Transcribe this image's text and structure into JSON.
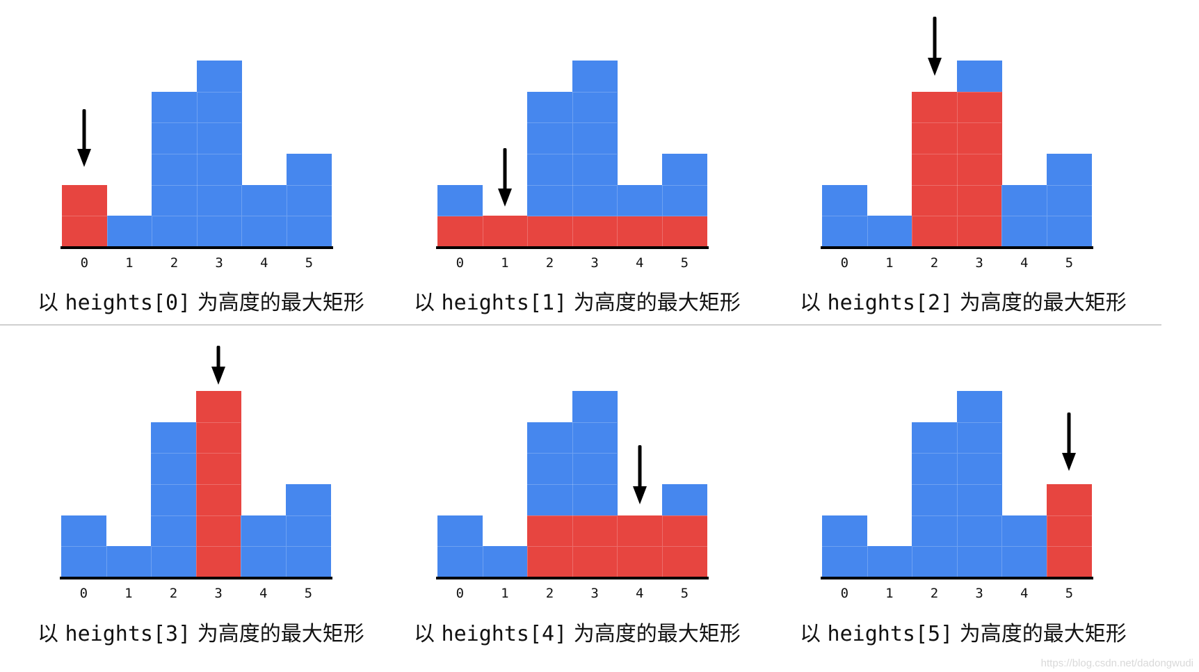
{
  "heights": [
    2,
    1,
    5,
    6,
    2,
    3
  ],
  "x_labels": [
    "0",
    "1",
    "2",
    "3",
    "4",
    "5"
  ],
  "colors": {
    "bar": "#4687ee",
    "highlight": "#e74540",
    "axis": "#000000",
    "separator": "#cfcfcf"
  },
  "panels": [
    {
      "index": 0,
      "caption_prefix": "以 ",
      "caption_code": "heights[0]",
      "caption_suffix": " 为高度的最大矩形",
      "highlight_range": [
        0,
        0
      ],
      "highlight_height": 2
    },
    {
      "index": 1,
      "caption_prefix": "以 ",
      "caption_code": "heights[1]",
      "caption_suffix": " 为高度的最大矩形",
      "highlight_range": [
        0,
        5
      ],
      "highlight_height": 1
    },
    {
      "index": 2,
      "caption_prefix": "以 ",
      "caption_code": "heights[2]",
      "caption_suffix": " 为高度的最大矩形",
      "highlight_range": [
        2,
        3
      ],
      "highlight_height": 5
    },
    {
      "index": 3,
      "caption_prefix": "以 ",
      "caption_code": "heights[3]",
      "caption_suffix": " 为高度的最大矩形",
      "highlight_range": [
        3,
        3
      ],
      "highlight_height": 6
    },
    {
      "index": 4,
      "caption_prefix": "以 ",
      "caption_code": "heights[4]",
      "caption_suffix": " 为高度的最大矩形",
      "highlight_range": [
        2,
        5
      ],
      "highlight_height": 2
    },
    {
      "index": 5,
      "caption_prefix": "以 ",
      "caption_code": "heights[5]",
      "caption_suffix": " 为高度的最大矩形",
      "highlight_range": [
        5,
        5
      ],
      "highlight_height": 3
    }
  ],
  "watermark": "https://blog.csdn.net/dadongwudi",
  "chart_data": [
    {
      "type": "bar",
      "title": "以 heights[0] 为高度的最大矩形",
      "categories": [
        "0",
        "1",
        "2",
        "3",
        "4",
        "5"
      ],
      "values": [
        2,
        1,
        5,
        6,
        2,
        3
      ],
      "highlight": {
        "from": 0,
        "to": 0,
        "height": 2,
        "area": 2
      },
      "arrow_at": 0,
      "xlabel": "",
      "ylabel": "",
      "ylim": [
        0,
        6
      ],
      "grid": true
    },
    {
      "type": "bar",
      "title": "以 heights[1] 为高度的最大矩形",
      "categories": [
        "0",
        "1",
        "2",
        "3",
        "4",
        "5"
      ],
      "values": [
        2,
        1,
        5,
        6,
        2,
        3
      ],
      "highlight": {
        "from": 0,
        "to": 5,
        "height": 1,
        "area": 6
      },
      "arrow_at": 1,
      "xlabel": "",
      "ylabel": "",
      "ylim": [
        0,
        6
      ],
      "grid": true
    },
    {
      "type": "bar",
      "title": "以 heights[2] 为高度的最大矩形",
      "categories": [
        "0",
        "1",
        "2",
        "3",
        "4",
        "5"
      ],
      "values": [
        2,
        1,
        5,
        6,
        2,
        3
      ],
      "highlight": {
        "from": 2,
        "to": 3,
        "height": 5,
        "area": 10
      },
      "arrow_at": 2,
      "xlabel": "",
      "ylabel": "",
      "ylim": [
        0,
        6
      ],
      "grid": true
    },
    {
      "type": "bar",
      "title": "以 heights[3] 为高度的最大矩形",
      "categories": [
        "0",
        "1",
        "2",
        "3",
        "4",
        "5"
      ],
      "values": [
        2,
        1,
        5,
        6,
        2,
        3
      ],
      "highlight": {
        "from": 3,
        "to": 3,
        "height": 6,
        "area": 6
      },
      "arrow_at": 3,
      "xlabel": "",
      "ylabel": "",
      "ylim": [
        0,
        6
      ],
      "grid": true
    },
    {
      "type": "bar",
      "title": "以 heights[4] 为高度的最大矩形",
      "categories": [
        "0",
        "1",
        "2",
        "3",
        "4",
        "5"
      ],
      "values": [
        2,
        1,
        5,
        6,
        2,
        3
      ],
      "highlight": {
        "from": 2,
        "to": 5,
        "height": 2,
        "area": 8
      },
      "arrow_at": 4,
      "xlabel": "",
      "ylabel": "",
      "ylim": [
        0,
        6
      ],
      "grid": true
    },
    {
      "type": "bar",
      "title": "以 heights[5] 为高度的最大矩形",
      "categories": [
        "0",
        "1",
        "2",
        "3",
        "4",
        "5"
      ],
      "values": [
        2,
        1,
        5,
        6,
        2,
        3
      ],
      "highlight": {
        "from": 5,
        "to": 5,
        "height": 3,
        "area": 3
      },
      "arrow_at": 5,
      "xlabel": "",
      "ylabel": "",
      "ylim": [
        0,
        6
      ],
      "grid": true
    }
  ]
}
